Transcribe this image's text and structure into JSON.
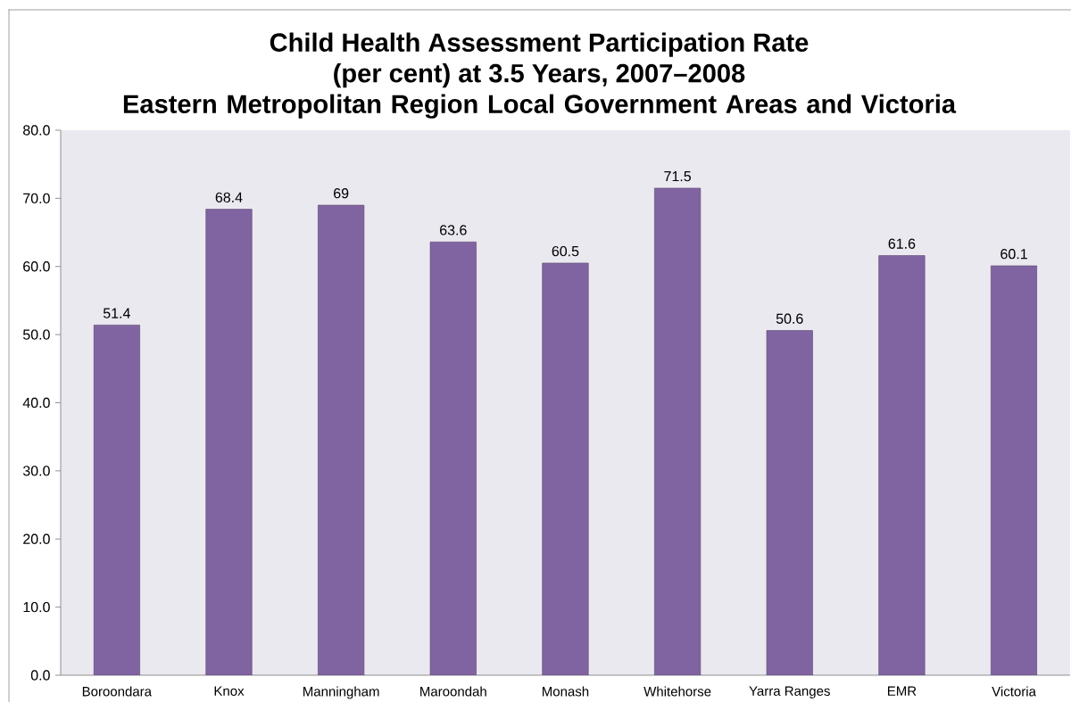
{
  "chart_data": {
    "type": "bar",
    "title": "Child Health Assessment Participation Rate (per cent) at 3.5 Years, 2007–2008",
    "subtitle": "Eastern Metropolitan Region Local Government Areas and Victoria",
    "categories": [
      "Boroondara",
      "Knox",
      "Manningham",
      "Maroondah",
      "Monash",
      "Whitehorse",
      "Yarra Ranges",
      "EMR",
      "Victoria"
    ],
    "values": [
      51.4,
      68.4,
      69,
      63.6,
      60.5,
      71.5,
      50.6,
      61.6,
      60.1
    ],
    "color": "#8064a2",
    "ylim": [
      0,
      80
    ],
    "yticks": [
      {
        "value": 0,
        "label": "0.0"
      },
      {
        "value": 10,
        "label": "10.0"
      },
      {
        "value": 20,
        "label": "20.0"
      },
      {
        "value": 30,
        "label": "30.0"
      },
      {
        "value": 40,
        "label": "40.0"
      },
      {
        "value": 50,
        "label": "50.0"
      },
      {
        "value": 60,
        "label": "60.0"
      },
      {
        "value": 70,
        "label": "70.0"
      },
      {
        "value": 80,
        "label": "80.0"
      }
    ],
    "data_labels": true
  }
}
